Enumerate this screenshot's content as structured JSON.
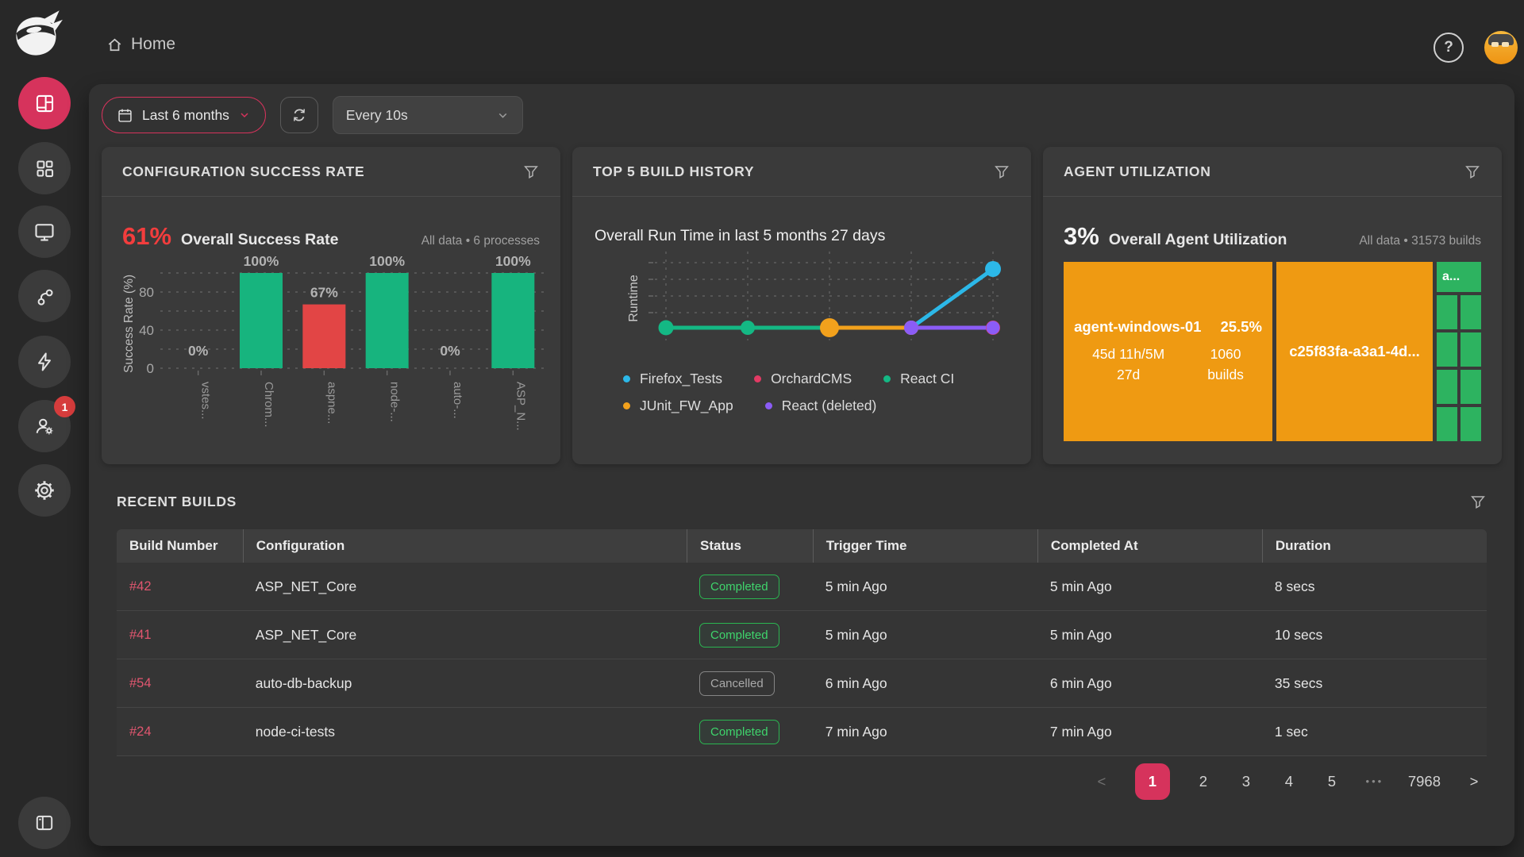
{
  "topbar": {
    "breadcrumb": "Home",
    "help_label": "?"
  },
  "sidebar": {
    "badge_count": "1"
  },
  "theme": {
    "accent": "#d6335c",
    "success": "#17b47e",
    "fail": "#e24545"
  },
  "filters": {
    "date_range": "Last 6 months",
    "interval": "Every 10s"
  },
  "cards": {
    "success_rate": {
      "title": "CONFIGURATION SUCCESS RATE",
      "value": "61%",
      "value_label": "Overall Success Rate",
      "meta": "All data • 6 processes",
      "chart_data": {
        "type": "bar",
        "title": "Configuration Success Rate",
        "ylabel": "Success Rate (%)",
        "ylim": [
          0,
          100
        ],
        "yticks": [
          0,
          40,
          80
        ],
        "grid": true,
        "categories": [
          "vstes...",
          "Chrom...",
          "aspne...",
          "node-...",
          "auto-...",
          "ASP_N..."
        ],
        "values": [
          0,
          100,
          67,
          100,
          0,
          100
        ],
        "labels": [
          "0%",
          "100%",
          "67%",
          "100%",
          "0%",
          "100%"
        ],
        "colors": {
          "success": "#17b47e",
          "fail": "#e24545"
        }
      }
    },
    "build_history": {
      "title": "TOP 5 BUILD HISTORY",
      "subtitle": "Overall Run Time in last 5 months 27 days",
      "chart_data": {
        "type": "line",
        "ylabel": "Runtime",
        "x_count": 5,
        "ylim": [
          1,
          5
        ],
        "grid": true,
        "legend_position": "bottom",
        "series": [
          {
            "name": "OrchardCMS",
            "color": "#e23a64",
            "points": [
              [
                3,
                1
              ],
              [
                4,
                1
              ]
            ],
            "dot_r": [
              9,
              9
            ]
          },
          {
            "name": "React CI",
            "color": "#14b884",
            "points": [
              [
                0,
                1
              ],
              [
                1,
                1
              ],
              [
                2,
                1
              ]
            ],
            "dot_r": [
              9.5,
              9,
              9
            ]
          },
          {
            "name": "JUnit_FW_App",
            "color": "#f2a11c",
            "points": [
              [
                2,
                1
              ],
              [
                3,
                1
              ]
            ],
            "dot_r": [
              12,
              9
            ]
          },
          {
            "name": "React (deleted)",
            "color": "#8b5cf6",
            "points": [
              [
                3,
                1
              ],
              [
                4,
                1
              ]
            ],
            "dot_r": [
              9,
              8.5
            ]
          },
          {
            "name": "Firefox_Tests",
            "color": "#2cb8e8",
            "points": [
              [
                3,
                1
              ],
              [
                4,
                5
              ]
            ],
            "dot_r": [
              0,
              10
            ]
          }
        ],
        "legend_rows": [
          [
            "Firefox_Tests",
            "OrchardCMS",
            "React CI"
          ],
          [
            "JUnit_FW_App",
            "React (deleted)"
          ]
        ]
      }
    },
    "agent_utilization": {
      "title": "AGENT UTILIZATION",
      "value": "3%",
      "value_label": "Overall Agent Utilization",
      "meta": "All data • 31573 builds",
      "treemap": {
        "block1": {
          "name": "agent-windows-01",
          "pct": "25.5%",
          "duration_line1": "45d 11h/5M",
          "duration_line2": "27d",
          "builds_count": "1060",
          "builds_label": "builds"
        },
        "block2": {
          "name": "c25f83fa-a3a1-4d..."
        },
        "green_cell_label": "a...",
        "green_cells": 8,
        "colors": {
          "orange": "#ef9a12",
          "green": "#2db360"
        }
      }
    }
  },
  "recent_builds": {
    "title": "RECENT BUILDS",
    "columns": [
      "Build Number",
      "Configuration",
      "Status",
      "Trigger Time",
      "Completed At",
      "Duration"
    ],
    "rows": [
      {
        "build": "#42",
        "config": "ASP_NET_Core",
        "status": "Completed",
        "trigger": "5 min Ago",
        "completed": "5 min Ago",
        "duration": "8 secs"
      },
      {
        "build": "#41",
        "config": "ASP_NET_Core",
        "status": "Completed",
        "trigger": "5 min Ago",
        "completed": "5 min Ago",
        "duration": "10 secs"
      },
      {
        "build": "#54",
        "config": "auto-db-backup",
        "status": "Cancelled",
        "trigger": "6 min Ago",
        "completed": "6 min Ago",
        "duration": "35 secs"
      },
      {
        "build": "#24",
        "config": "node-ci-tests",
        "status": "Completed",
        "trigger": "7 min Ago",
        "completed": "7 min Ago",
        "duration": "1 sec"
      }
    ],
    "pagination": {
      "prev": "<",
      "next": ">",
      "pages": [
        "1",
        "2",
        "3",
        "4",
        "5",
        "•••",
        "7968"
      ],
      "active": "1"
    }
  }
}
